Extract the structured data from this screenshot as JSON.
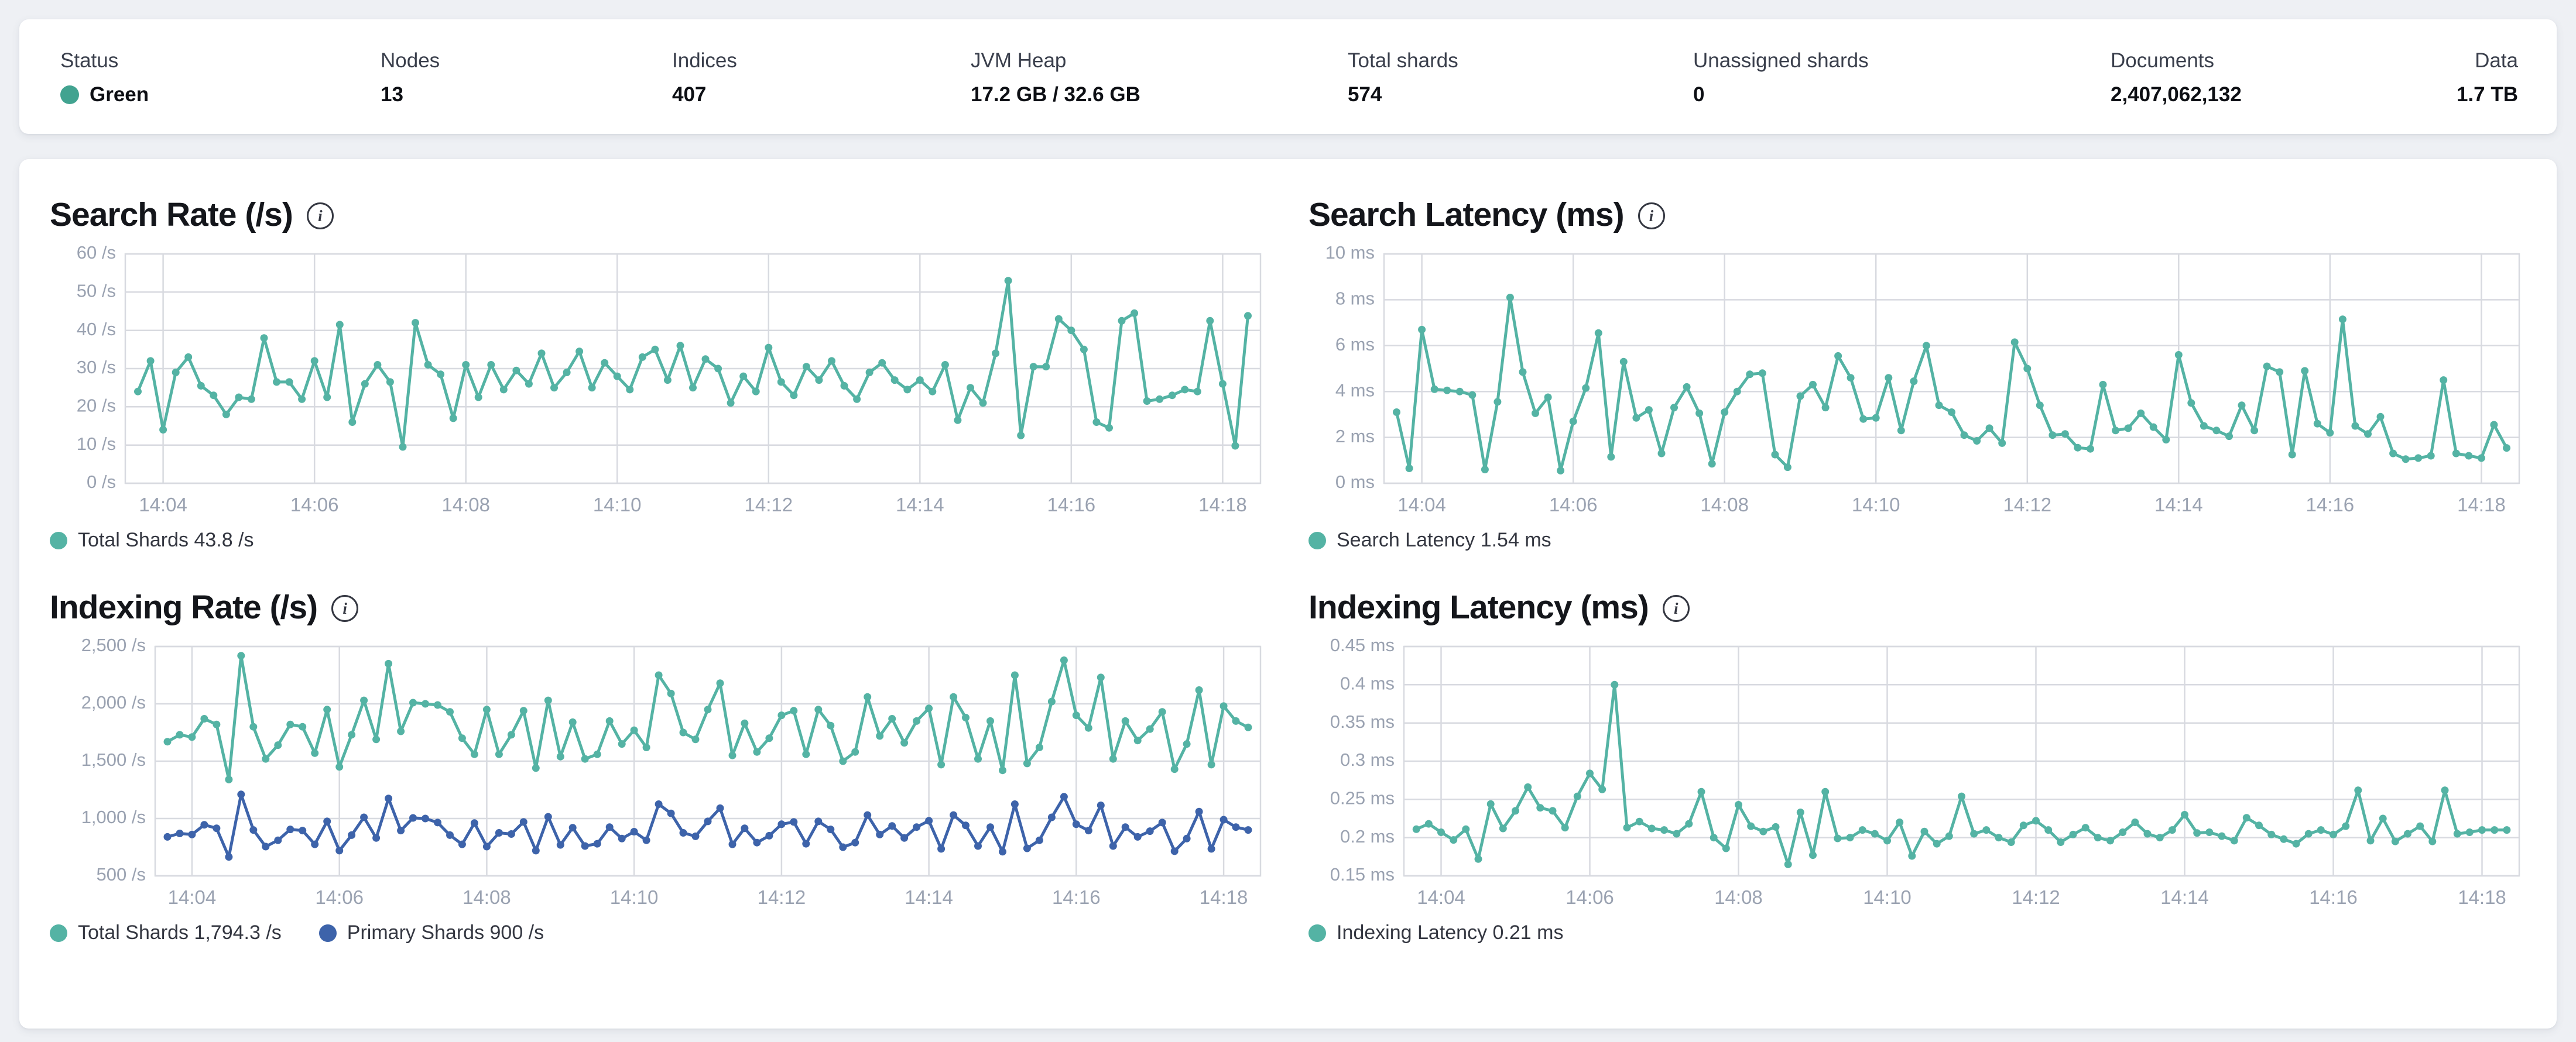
{
  "palette": {
    "teal": "#54b3a4",
    "blue": "#3d63aa",
    "health_green": "#42a390",
    "grid": "#d8dae0",
    "axis_text": "#9aa2b1"
  },
  "stats_bar": {
    "items": [
      {
        "label": "Status",
        "value": "Green",
        "dot_color": "#42a390"
      },
      {
        "label": "Nodes",
        "value": "13"
      },
      {
        "label": "Indices",
        "value": "407"
      },
      {
        "label": "JVM Heap",
        "value": "17.2 GB / 32.6 GB"
      },
      {
        "label": "Total shards",
        "value": "574"
      },
      {
        "label": "Unassigned shards",
        "value": "0"
      },
      {
        "label": "Documents",
        "value": "2,407,062,132"
      },
      {
        "label": "Data",
        "value": "1.7 TB",
        "align": "right"
      }
    ]
  },
  "chart_data": [
    {
      "type": "line",
      "title": "Search Rate (/s)",
      "y_axis": {
        "min": 0,
        "max": 60,
        "ticks": [
          {
            "label": "60 /s",
            "value": 60
          },
          {
            "label": "50 /s",
            "value": 50
          },
          {
            "label": "40 /s",
            "value": 40
          },
          {
            "label": "30 /s",
            "value": 30
          },
          {
            "label": "20 /s",
            "value": 20
          },
          {
            "label": "10 /s",
            "value": 10
          },
          {
            "label": "0 /s",
            "value": 0
          }
        ]
      },
      "x_axis": {
        "domain_start": "14:03:30",
        "domain_end": "14:18:30",
        "tick_labels": [
          "14:04",
          "14:06",
          "14:08",
          "14:10",
          "14:12",
          "14:14",
          "14:16",
          "14:18"
        ]
      },
      "points": {
        "start": "14:03:40",
        "interval_sec": 10
      },
      "series": [
        {
          "name": "Total Shards",
          "current": "43.8 /s",
          "legend": "Total Shards 43.8 /s",
          "color": "#54b3a4",
          "values": [
            24,
            32,
            14,
            29,
            33,
            25.5,
            23,
            18,
            22.5,
            22,
            38,
            26.5,
            26.5,
            22,
            32,
            22.5,
            41.5,
            16,
            26,
            31,
            26.5,
            9.5,
            42,
            31,
            28.5,
            17,
            31,
            22.5,
            31,
            24.5,
            29.5,
            26,
            34,
            25,
            29,
            34.5,
            25,
            31.5,
            28,
            24.5,
            33,
            35,
            27,
            36,
            25,
            32.5,
            30,
            21,
            28,
            24,
            35.5,
            26.5,
            23,
            30.5,
            27,
            32,
            25.5,
            22,
            29,
            31.5,
            27,
            24.5,
            27,
            24,
            31,
            16.5,
            25,
            21,
            34,
            53,
            12.5,
            30.5,
            30.5,
            43,
            40,
            35,
            16,
            14.5,
            42.5,
            44.5,
            21.5,
            22,
            23,
            24.5,
            24,
            42.5,
            26,
            9.8,
            43.8
          ]
        }
      ]
    },
    {
      "type": "line",
      "title": "Search Latency (ms)",
      "y_axis": {
        "min": 0,
        "max": 10,
        "ticks": [
          {
            "label": "10 ms",
            "value": 10
          },
          {
            "label": "8 ms",
            "value": 8
          },
          {
            "label": "6 ms",
            "value": 6
          },
          {
            "label": "4 ms",
            "value": 4
          },
          {
            "label": "2 ms",
            "value": 2
          },
          {
            "label": "0 ms",
            "value": 0
          }
        ]
      },
      "x_axis": {
        "domain_start": "14:03:30",
        "domain_end": "14:18:30",
        "tick_labels": [
          "14:04",
          "14:06",
          "14:08",
          "14:10",
          "14:12",
          "14:14",
          "14:16",
          "14:18"
        ]
      },
      "points": {
        "start": "14:03:40",
        "interval_sec": 10
      },
      "series": [
        {
          "name": "Search Latency",
          "current": "1.54 ms",
          "legend": "Search Latency 1.54 ms",
          "color": "#54b3a4",
          "values": [
            3.1,
            0.65,
            6.7,
            4.1,
            4.05,
            4.0,
            3.85,
            0.6,
            3.55,
            8.1,
            4.85,
            3.05,
            3.75,
            0.55,
            2.7,
            4.15,
            6.55,
            1.15,
            5.3,
            2.85,
            3.2,
            1.3,
            3.3,
            4.2,
            3.05,
            0.85,
            3.1,
            4.0,
            4.75,
            4.8,
            1.25,
            0.7,
            3.8,
            4.3,
            3.3,
            5.55,
            4.6,
            2.8,
            2.85,
            4.6,
            2.3,
            4.45,
            6.0,
            3.4,
            3.1,
            2.1,
            1.85,
            2.4,
            1.75,
            6.15,
            5.0,
            3.4,
            2.1,
            2.15,
            1.55,
            1.5,
            4.3,
            2.3,
            2.4,
            3.05,
            2.45,
            1.9,
            5.6,
            3.5,
            2.5,
            2.3,
            2.05,
            3.4,
            2.3,
            5.1,
            4.85,
            1.25,
            4.9,
            2.6,
            2.2,
            7.15,
            2.5,
            2.15,
            2.9,
            1.3,
            1.05,
            1.1,
            1.2,
            4.5,
            1.3,
            1.2,
            1.1,
            2.55,
            1.54
          ]
        }
      ]
    },
    {
      "type": "line",
      "title": "Indexing Rate (/s)",
      "y_axis": {
        "min": 500,
        "max": 2500,
        "ticks": [
          {
            "label": "2,500 /s",
            "value": 2500
          },
          {
            "label": "2,000 /s",
            "value": 2000
          },
          {
            "label": "1,500 /s",
            "value": 1500
          },
          {
            "label": "1,000 /s",
            "value": 1000
          },
          {
            "label": "500 /s",
            "value": 500
          }
        ]
      },
      "x_axis": {
        "domain_start": "14:03:30",
        "domain_end": "14:18:30",
        "tick_labels": [
          "14:04",
          "14:06",
          "14:08",
          "14:10",
          "14:12",
          "14:14",
          "14:16",
          "14:18"
        ]
      },
      "points": {
        "start": "14:03:40",
        "interval_sec": 10
      },
      "series": [
        {
          "name": "Total Shards",
          "current": "1,794.3 /s",
          "legend": "Total Shards 1,794.3 /s",
          "color": "#54b3a4",
          "values": [
            1670,
            1730,
            1710,
            1870,
            1820,
            1340,
            2420,
            1800,
            1520,
            1640,
            1820,
            1800,
            1570,
            1950,
            1450,
            1730,
            2030,
            1690,
            2350,
            1760,
            2010,
            2000,
            1990,
            1930,
            1700,
            1560,
            1950,
            1560,
            1730,
            1940,
            1440,
            2030,
            1540,
            1840,
            1520,
            1560,
            1850,
            1650,
            1770,
            1620,
            2250,
            2090,
            1750,
            1690,
            1950,
            2180,
            1550,
            1830,
            1580,
            1700,
            1900,
            1940,
            1560,
            1950,
            1810,
            1500,
            1580,
            2060,
            1720,
            1870,
            1660,
            1850,
            1960,
            1470,
            2060,
            1880,
            1520,
            1850,
            1420,
            2250,
            1480,
            1620,
            2020,
            2380,
            1900,
            1790,
            2230,
            1520,
            1850,
            1680,
            1780,
            1930,
            1430,
            1650,
            2120,
            1470,
            1980,
            1850,
            1794.3
          ]
        },
        {
          "name": "Primary Shards",
          "current": "900 /s",
          "legend": "Primary Shards 900 /s",
          "color": "#3d63aa",
          "values": [
            840,
            870,
            860,
            945,
            915,
            665,
            1210,
            900,
            755,
            810,
            905,
            895,
            775,
            975,
            720,
            855,
            1010,
            830,
            1175,
            895,
            1005,
            1000,
            965,
            855,
            775,
            960,
            755,
            875,
            865,
            970,
            720,
            1015,
            770,
            920,
            760,
            780,
            925,
            825,
            885,
            810,
            1125,
            1045,
            875,
            845,
            975,
            1090,
            775,
            915,
            790,
            850,
            950,
            970,
            780,
            975,
            905,
            750,
            790,
            1030,
            860,
            935,
            830,
            925,
            980,
            735,
            1030,
            940,
            760,
            925,
            710,
            1125,
            740,
            810,
            1010,
            1190,
            950,
            895,
            1115,
            760,
            925,
            840,
            890,
            965,
            715,
            825,
            1060,
            735,
            990,
            925,
            900
          ]
        }
      ]
    },
    {
      "type": "line",
      "title": "Indexing Latency (ms)",
      "y_axis": {
        "min": 0.15,
        "max": 0.45,
        "ticks": [
          {
            "label": "0.45 ms",
            "value": 0.45
          },
          {
            "label": "0.4 ms",
            "value": 0.4
          },
          {
            "label": "0.35 ms",
            "value": 0.35
          },
          {
            "label": "0.3 ms",
            "value": 0.3
          },
          {
            "label": "0.25 ms",
            "value": 0.25
          },
          {
            "label": "0.2 ms",
            "value": 0.2
          },
          {
            "label": "0.15 ms",
            "value": 0.15
          }
        ]
      },
      "x_axis": {
        "domain_start": "14:03:30",
        "domain_end": "14:18:30",
        "tick_labels": [
          "14:04",
          "14:06",
          "14:08",
          "14:10",
          "14:12",
          "14:14",
          "14:16",
          "14:18"
        ]
      },
      "points": {
        "start": "14:03:40",
        "interval_sec": 10
      },
      "series": [
        {
          "name": "Indexing Latency",
          "current": "0.21 ms",
          "legend": "Indexing Latency 0.21 ms",
          "color": "#54b3a4",
          "values": [
            0.211,
            0.218,
            0.207,
            0.197,
            0.211,
            0.172,
            0.244,
            0.212,
            0.235,
            0.266,
            0.239,
            0.235,
            0.213,
            0.254,
            0.284,
            0.263,
            0.4,
            0.213,
            0.221,
            0.212,
            0.21,
            0.205,
            0.218,
            0.26,
            0.2,
            0.186,
            0.243,
            0.215,
            0.208,
            0.214,
            0.165,
            0.233,
            0.177,
            0.26,
            0.199,
            0.2,
            0.21,
            0.205,
            0.196,
            0.22,
            0.176,
            0.208,
            0.192,
            0.202,
            0.254,
            0.205,
            0.21,
            0.2,
            0.194,
            0.216,
            0.222,
            0.21,
            0.194,
            0.204,
            0.213,
            0.2,
            0.196,
            0.207,
            0.22,
            0.205,
            0.2,
            0.21,
            0.23,
            0.206,
            0.207,
            0.202,
            0.196,
            0.226,
            0.216,
            0.204,
            0.198,
            0.192,
            0.205,
            0.21,
            0.204,
            0.215,
            0.262,
            0.196,
            0.225,
            0.195,
            0.205,
            0.215,
            0.195,
            0.262,
            0.205,
            0.207,
            0.21,
            0.21,
            0.21
          ]
        }
      ]
    }
  ]
}
